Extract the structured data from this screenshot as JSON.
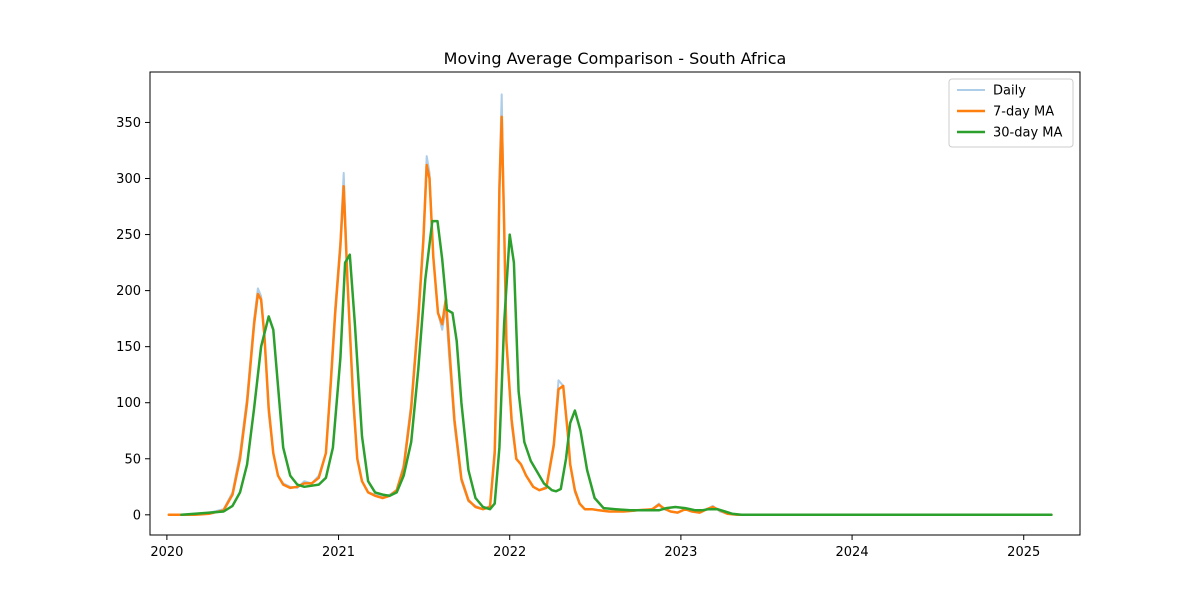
{
  "chart_data": {
    "type": "line",
    "title": "Moving Average Comparison - South Africa",
    "xlabel": "",
    "ylabel": "",
    "x_ticks": [
      "2020",
      "2021",
      "2022",
      "2023",
      "2024",
      "2025"
    ],
    "y_ticks": [
      0,
      50,
      100,
      150,
      200,
      250,
      300,
      350
    ],
    "xlim": [
      "2019-11-26",
      "2025-05-01"
    ],
    "ylim": [
      -18,
      395
    ],
    "grid": false,
    "legend_position": "upper right",
    "series": [
      {
        "name": "Daily",
        "color": "#aecde8",
        "width": 2,
        "x": [
          "2020-01-05",
          "2020-03-01",
          "2020-04-01",
          "2020-05-01",
          "2020-05-20",
          "2020-06-05",
          "2020-06-20",
          "2020-07-05",
          "2020-07-13",
          "2020-07-20",
          "2020-07-27",
          "2020-08-05",
          "2020-08-15",
          "2020-08-25",
          "2020-09-05",
          "2020-09-20",
          "2020-10-05",
          "2020-10-20",
          "2020-11-05",
          "2020-11-20",
          "2020-12-05",
          "2020-12-15",
          "2020-12-25",
          "2021-01-05",
          "2021-01-12",
          "2021-01-20",
          "2021-02-01",
          "2021-02-10",
          "2021-02-20",
          "2021-03-05",
          "2021-03-20",
          "2021-04-05",
          "2021-04-20",
          "2021-05-05",
          "2021-05-20",
          "2021-06-05",
          "2021-06-20",
          "2021-07-01",
          "2021-07-08",
          "2021-07-14",
          "2021-07-22",
          "2021-08-01",
          "2021-08-10",
          "2021-08-18",
          "2021-08-25",
          "2021-09-05",
          "2021-09-20",
          "2021-10-05",
          "2021-10-20",
          "2021-11-05",
          "2021-11-20",
          "2021-11-30",
          "2021-12-05",
          "2021-12-10",
          "2021-12-15",
          "2021-12-20",
          "2021-12-25",
          "2022-01-05",
          "2022-01-15",
          "2022-01-25",
          "2022-02-05",
          "2022-02-20",
          "2022-03-05",
          "2022-03-20",
          "2022-04-05",
          "2022-04-15",
          "2022-04-25",
          "2022-05-05",
          "2022-05-10",
          "2022-05-20",
          "2022-05-30",
          "2022-06-10",
          "2022-06-25",
          "2022-07-10",
          "2022-08-01",
          "2022-09-01",
          "2022-10-01",
          "2022-11-01",
          "2022-11-15",
          "2022-11-25",
          "2022-12-10",
          "2022-12-25",
          "2023-01-10",
          "2023-01-25",
          "2023-02-10",
          "2023-02-25",
          "2023-03-10",
          "2023-03-25",
          "2023-04-10",
          "2023-05-01",
          "2023-06-01",
          "2024-01-01",
          "2024-06-01",
          "2025-03-01"
        ],
        "y": [
          0,
          0,
          2,
          5,
          20,
          55,
          105,
          175,
          202,
          195,
          160,
          90,
          55,
          35,
          28,
          25,
          24,
          30,
          28,
          35,
          55,
          120,
          185,
          245,
          305,
          210,
          100,
          50,
          30,
          20,
          18,
          16,
          18,
          22,
          45,
          100,
          180,
          250,
          320,
          305,
          230,
          180,
          165,
          185,
          140,
          80,
          30,
          12,
          8,
          5,
          8,
          60,
          150,
          300,
          375,
          260,
          155,
          80,
          50,
          45,
          35,
          25,
          22,
          25,
          65,
          120,
          115,
          70,
          45,
          20,
          10,
          5,
          5,
          4,
          3,
          3,
          4,
          5,
          10,
          5,
          3,
          2,
          5,
          3,
          2,
          5,
          8,
          3,
          1,
          0,
          0,
          0,
          0,
          0
        ]
      },
      {
        "name": "7-day MA",
        "color": "#ff7f0e",
        "width": 2.5,
        "x": [
          "2020-01-05",
          "2020-03-01",
          "2020-04-01",
          "2020-05-01",
          "2020-05-20",
          "2020-06-05",
          "2020-06-20",
          "2020-07-05",
          "2020-07-13",
          "2020-07-20",
          "2020-07-27",
          "2020-08-05",
          "2020-08-15",
          "2020-08-25",
          "2020-09-05",
          "2020-09-20",
          "2020-10-05",
          "2020-10-20",
          "2020-11-05",
          "2020-11-20",
          "2020-12-05",
          "2020-12-15",
          "2020-12-25",
          "2021-01-05",
          "2021-01-12",
          "2021-01-20",
          "2021-02-01",
          "2021-02-10",
          "2021-02-20",
          "2021-03-05",
          "2021-03-20",
          "2021-04-05",
          "2021-04-20",
          "2021-05-05",
          "2021-05-20",
          "2021-06-05",
          "2021-06-20",
          "2021-07-01",
          "2021-07-08",
          "2021-07-14",
          "2021-07-22",
          "2021-08-01",
          "2021-08-10",
          "2021-08-18",
          "2021-08-25",
          "2021-09-05",
          "2021-09-20",
          "2021-10-05",
          "2021-10-20",
          "2021-11-05",
          "2021-11-20",
          "2021-11-30",
          "2021-12-05",
          "2021-12-10",
          "2021-12-15",
          "2021-12-20",
          "2021-12-25",
          "2022-01-05",
          "2022-01-15",
          "2022-01-25",
          "2022-02-05",
          "2022-02-20",
          "2022-03-05",
          "2022-03-20",
          "2022-04-05",
          "2022-04-15",
          "2022-04-25",
          "2022-05-05",
          "2022-05-10",
          "2022-05-20",
          "2022-05-30",
          "2022-06-10",
          "2022-06-25",
          "2022-07-10",
          "2022-08-01",
          "2022-09-01",
          "2022-10-01",
          "2022-11-01",
          "2022-11-15",
          "2022-11-25",
          "2022-12-10",
          "2022-12-25",
          "2023-01-10",
          "2023-01-25",
          "2023-02-10",
          "2023-02-25",
          "2023-03-10",
          "2023-03-25",
          "2023-04-10",
          "2023-05-01",
          "2023-06-01",
          "2024-01-01",
          "2024-06-01",
          "2025-03-01"
        ],
        "y": [
          0,
          0,
          1,
          4,
          18,
          50,
          100,
          170,
          197,
          192,
          160,
          95,
          55,
          35,
          27,
          24,
          25,
          28,
          28,
          33,
          55,
          115,
          180,
          240,
          293,
          210,
          105,
          50,
          30,
          20,
          17,
          15,
          17,
          22,
          42,
          95,
          175,
          245,
          312,
          300,
          230,
          180,
          170,
          193,
          150,
          85,
          32,
          13,
          7,
          5,
          7,
          55,
          140,
          290,
          355,
          260,
          155,
          85,
          50,
          45,
          35,
          25,
          22,
          24,
          62,
          112,
          115,
          72,
          45,
          22,
          10,
          5,
          5,
          4,
          3,
          3,
          4,
          5,
          9,
          6,
          3,
          2,
          5,
          3,
          2,
          5,
          7,
          4,
          1,
          0,
          0,
          0,
          0,
          0
        ]
      },
      {
        "name": "30-day MA",
        "color": "#2ca02c",
        "width": 2.5,
        "x": [
          "2020-02-01",
          "2020-03-01",
          "2020-04-01",
          "2020-05-01",
          "2020-05-20",
          "2020-06-05",
          "2020-06-20",
          "2020-07-05",
          "2020-07-20",
          "2020-08-05",
          "2020-08-15",
          "2020-08-25",
          "2020-09-05",
          "2020-09-20",
          "2020-10-05",
          "2020-10-20",
          "2020-11-05",
          "2020-11-20",
          "2020-12-05",
          "2020-12-20",
          "2021-01-05",
          "2021-01-15",
          "2021-01-25",
          "2021-02-05",
          "2021-02-20",
          "2021-03-05",
          "2021-03-20",
          "2021-04-05",
          "2021-04-20",
          "2021-05-05",
          "2021-05-20",
          "2021-06-05",
          "2021-06-20",
          "2021-07-05",
          "2021-07-20",
          "2021-07-31",
          "2021-08-10",
          "2021-08-20",
          "2021-09-01",
          "2021-09-10",
          "2021-09-20",
          "2021-10-05",
          "2021-10-20",
          "2021-11-05",
          "2021-11-20",
          "2021-11-30",
          "2021-12-10",
          "2021-12-20",
          "2022-01-01",
          "2022-01-10",
          "2022-01-20",
          "2022-02-01",
          "2022-02-15",
          "2022-03-01",
          "2022-03-15",
          "2022-04-01",
          "2022-04-10",
          "2022-04-20",
          "2022-05-01",
          "2022-05-10",
          "2022-05-20",
          "2022-06-01",
          "2022-06-15",
          "2022-07-01",
          "2022-07-20",
          "2022-08-15",
          "2022-09-15",
          "2022-10-15",
          "2022-11-15",
          "2022-12-01",
          "2022-12-20",
          "2023-01-10",
          "2023-02-01",
          "2023-02-15",
          "2023-03-01",
          "2023-03-20",
          "2023-04-05",
          "2023-04-20",
          "2023-05-10",
          "2024-01-01",
          "2025-03-01"
        ],
        "y": [
          0,
          1,
          2,
          3,
          8,
          20,
          45,
          95,
          150,
          177,
          165,
          115,
          60,
          35,
          27,
          25,
          26,
          27,
          33,
          60,
          140,
          225,
          232,
          170,
          70,
          30,
          20,
          18,
          17,
          20,
          35,
          65,
          130,
          210,
          262,
          262,
          228,
          183,
          180,
          155,
          100,
          40,
          15,
          7,
          5,
          10,
          60,
          170,
          250,
          225,
          110,
          65,
          48,
          38,
          28,
          22,
          21,
          23,
          50,
          82,
          93,
          75,
          40,
          15,
          6,
          5,
          4,
          4,
          4,
          6,
          7,
          6,
          4,
          4,
          5,
          5,
          3,
          1,
          0,
          0,
          0
        ]
      }
    ]
  }
}
